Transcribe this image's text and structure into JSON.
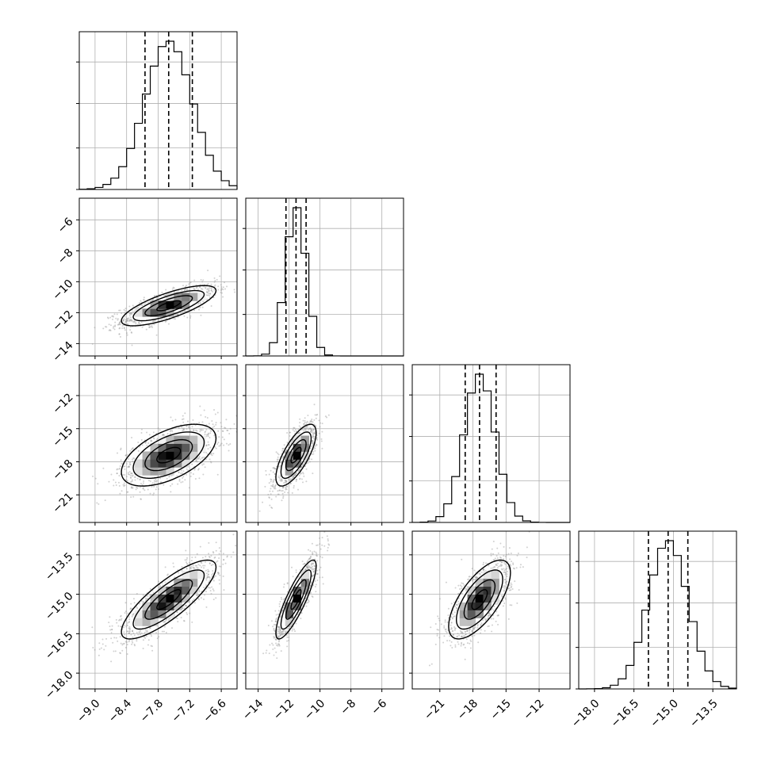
{
  "chart_data": {
    "type": "corner",
    "title": "",
    "parameters": [
      {
        "range": [
          -9.3,
          -6.3
        ],
        "ticks": [
          -9.0,
          -8.4,
          -7.8,
          -7.2,
          -6.6
        ],
        "tick_labels": [
          "−9.0",
          "−8.4",
          "−7.8",
          "−7.2",
          "−6.6"
        ],
        "median": -7.6,
        "q16": -8.05,
        "q84": -7.15,
        "sigma": 0.45
      },
      {
        "range": [
          -14.8,
          -4.6
        ],
        "ticks": [
          -14,
          -12,
          -10,
          -8,
          -6
        ],
        "tick_labels": [
          "−14",
          "−12",
          "−10",
          "−8",
          "−6"
        ],
        "median": -11.55,
        "q16": -12.2,
        "q84": -10.9,
        "sigma": 0.65
      },
      {
        "range": [
          -23.5,
          -9.2
        ],
        "ticks": [
          -21,
          -18,
          -15,
          -12
        ],
        "tick_labels": [
          "−21",
          "−18",
          "−15",
          "−12"
        ],
        "median": -17.4,
        "q16": -18.7,
        "q84": -15.9,
        "sigma": 1.4
      },
      {
        "range": [
          -18.6,
          -12.6
        ],
        "ticks": [
          -18.0,
          -16.5,
          -15.0,
          -13.5
        ],
        "tick_labels": [
          "−18.0",
          "−16.5",
          "−15.0",
          "−13.5"
        ],
        "median": -15.2,
        "q16": -15.95,
        "q84": -14.45,
        "sigma": 0.75
      }
    ],
    "correlations": [
      {
        "i": 1,
        "j": 0,
        "rho": 0.75
      },
      {
        "i": 2,
        "j": 0,
        "rho": 0.55
      },
      {
        "i": 2,
        "j": 1,
        "rho": 0.72
      },
      {
        "i": 3,
        "j": 0,
        "rho": 0.82
      },
      {
        "i": 3,
        "j": 1,
        "rho": 0.85
      },
      {
        "i": 3,
        "j": 2,
        "rho": 0.68
      }
    ],
    "contour_levels_sigma": [
      0.5,
      1.0,
      1.5,
      2.0
    ],
    "grid": true,
    "legend": "none"
  }
}
